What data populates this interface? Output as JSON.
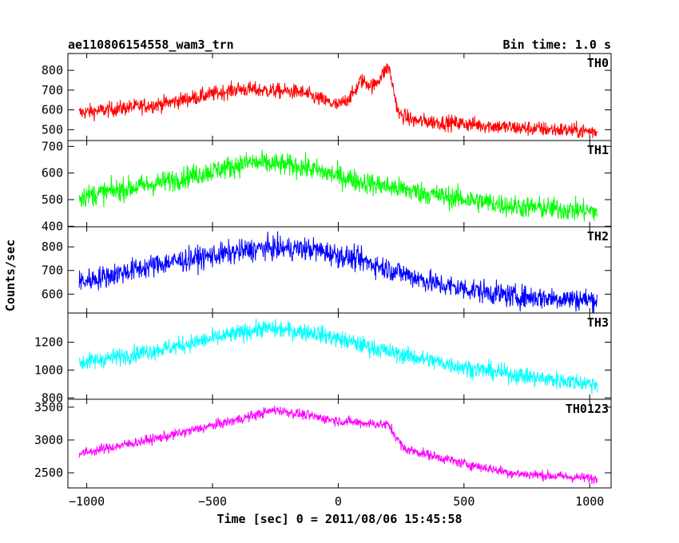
{
  "header": {
    "title": "ae110806154558_wam3_trn",
    "bin_time": "Bin time: 1.0 s"
  },
  "chart_data": {
    "type": "line",
    "xlabel": "Time [sec] 0 = 2011/08/06 15:45:58",
    "ylabel": "Counts/sec",
    "xlim": [
      -1075,
      1085
    ],
    "xticks": [
      -1000,
      -500,
      0,
      500,
      1000
    ],
    "xtick_labels": [
      "−1000",
      "−500",
      "0",
      "500",
      "1000"
    ],
    "grid": false,
    "panels": [
      {
        "name": "TH0",
        "color": "#ff0000",
        "ylim": [
          445,
          885
        ],
        "yticks": [
          500,
          600,
          700,
          800
        ],
        "trend": [
          [
            -1030,
            585
          ],
          [
            -700,
            630
          ],
          [
            -400,
            705
          ],
          [
            -150,
            690
          ],
          [
            0,
            620
          ],
          [
            60,
            680
          ],
          [
            90,
            750
          ],
          [
            140,
            720
          ],
          [
            200,
            820
          ],
          [
            240,
            580
          ],
          [
            300,
            545
          ],
          [
            500,
            530
          ],
          [
            700,
            510
          ],
          [
            1030,
            490
          ]
        ],
        "noise": 28
      },
      {
        "name": "TH1",
        "color": "#00ff00",
        "ylim": [
          398,
          722
        ],
        "yticks": [
          400,
          500,
          600,
          700
        ],
        "trend": [
          [
            -1030,
            510
          ],
          [
            -700,
            565
          ],
          [
            -350,
            640
          ],
          [
            -150,
            625
          ],
          [
            100,
            565
          ],
          [
            400,
            515
          ],
          [
            700,
            475
          ],
          [
            1030,
            455
          ]
        ],
        "noise": 30
      },
      {
        "name": "TH2",
        "color": "#0000ff",
        "ylim": [
          520,
          885
        ],
        "yticks": [
          600,
          700,
          800
        ],
        "trend": [
          [
            -1030,
            650
          ],
          [
            -700,
            730
          ],
          [
            -300,
            795
          ],
          [
            -100,
            790
          ],
          [
            100,
            740
          ],
          [
            400,
            640
          ],
          [
            700,
            590
          ],
          [
            1030,
            575
          ]
        ],
        "noise": 35
      },
      {
        "name": "TH3",
        "color": "#00ffff",
        "ylim": [
          790,
          1410
        ],
        "yticks": [
          800,
          1000,
          1200
        ],
        "trend": [
          [
            -1030,
            1050
          ],
          [
            -700,
            1150
          ],
          [
            -300,
            1300
          ],
          [
            -100,
            1270
          ],
          [
            200,
            1130
          ],
          [
            500,
            1020
          ],
          [
            800,
            940
          ],
          [
            1030,
            900
          ]
        ],
        "noise": 45
      },
      {
        "name": "TH0123",
        "color": "#ff00ff",
        "ylim": [
          2270,
          3620
        ],
        "yticks": [
          2500,
          3000,
          3500
        ],
        "trend": [
          [
            -1030,
            2790
          ],
          [
            -700,
            3040
          ],
          [
            -400,
            3310
          ],
          [
            -250,
            3460
          ],
          [
            0,
            3290
          ],
          [
            200,
            3230
          ],
          [
            260,
            2870
          ],
          [
            500,
            2640
          ],
          [
            700,
            2490
          ],
          [
            1030,
            2410
          ]
        ],
        "noise": 55
      }
    ]
  }
}
